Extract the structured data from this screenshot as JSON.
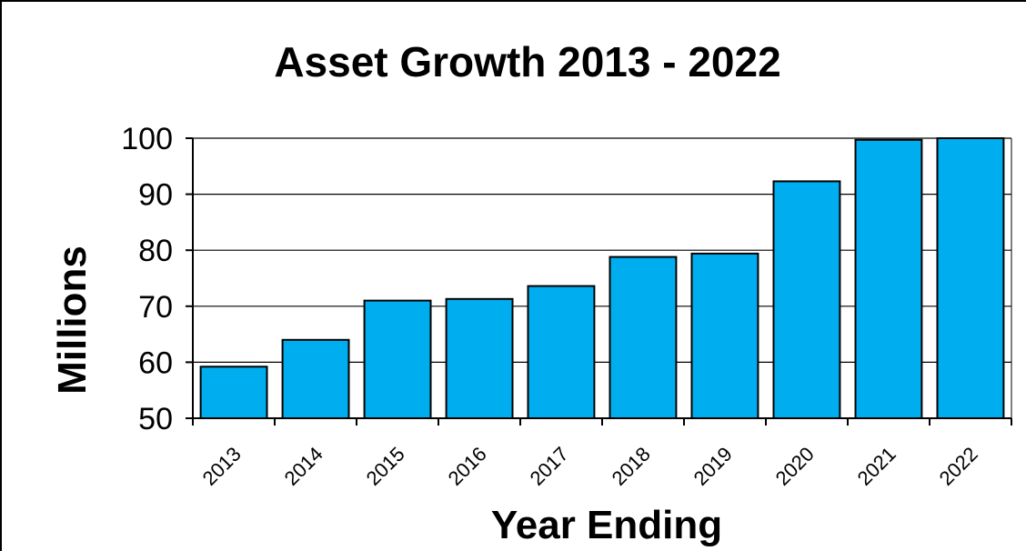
{
  "chart_data": {
    "type": "bar",
    "title": "Asset Growth 2013 - 2022",
    "xlabel": "Year Ending",
    "ylabel": "Millions",
    "categories": [
      "2013",
      "2014",
      "2015",
      "2016",
      "2017",
      "2018",
      "2019",
      "2020",
      "2021",
      "2022"
    ],
    "values": [
      59.2,
      64,
      71,
      71.3,
      73.6,
      78.8,
      79.4,
      92.3,
      99.7,
      101
    ],
    "ylim": [
      50,
      100
    ],
    "yticks": [
      50,
      60,
      70,
      80,
      90,
      100
    ],
    "grid": true,
    "legend": "none",
    "bar_color": "#00AEEF",
    "bar_outline_color": "#000000"
  }
}
